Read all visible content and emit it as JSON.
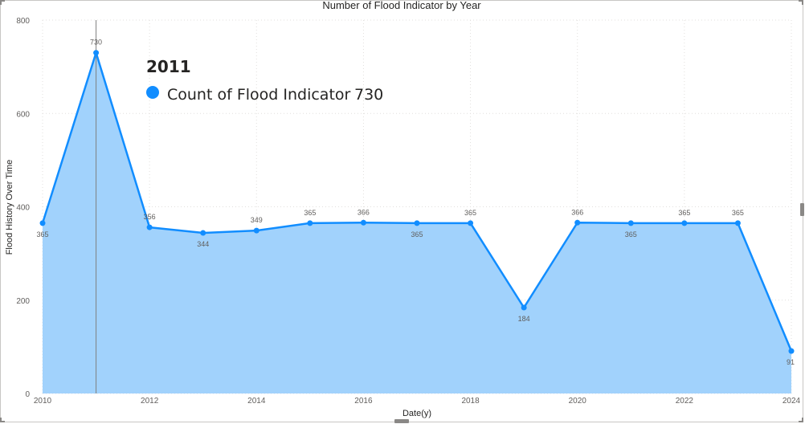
{
  "chart_data": {
    "type": "area",
    "title": "Number of Flood Indicator by Year",
    "xlabel": "Date(y)",
    "ylabel": "Flood History Over Time",
    "x": [
      2010,
      2011,
      2012,
      2013,
      2014,
      2015,
      2016,
      2017,
      2018,
      2019,
      2020,
      2021,
      2022,
      2023,
      2024
    ],
    "series": [
      {
        "name": "Count of Flood Indicator",
        "values": [
          365,
          730,
          356,
          344,
          349,
          365,
          366,
          365,
          365,
          184,
          366,
          365,
          365,
          365,
          91
        ]
      }
    ],
    "xticks": [
      "2010",
      "2012",
      "2014",
      "2016",
      "2018",
      "2020",
      "2022",
      "2024"
    ],
    "yticks": [
      "0",
      "200",
      "400",
      "600",
      "800"
    ],
    "ylim": [
      0,
      800
    ],
    "xlim": [
      2010,
      2024
    ],
    "grid": true,
    "colors": {
      "line": "#118DFF",
      "fill": "#A1D2FC",
      "grid": "#E1DFDD",
      "hover_line": "#808080"
    },
    "tooltip": {
      "title": "2011",
      "label": "Count of Flood Indicator",
      "value": "730"
    }
  }
}
